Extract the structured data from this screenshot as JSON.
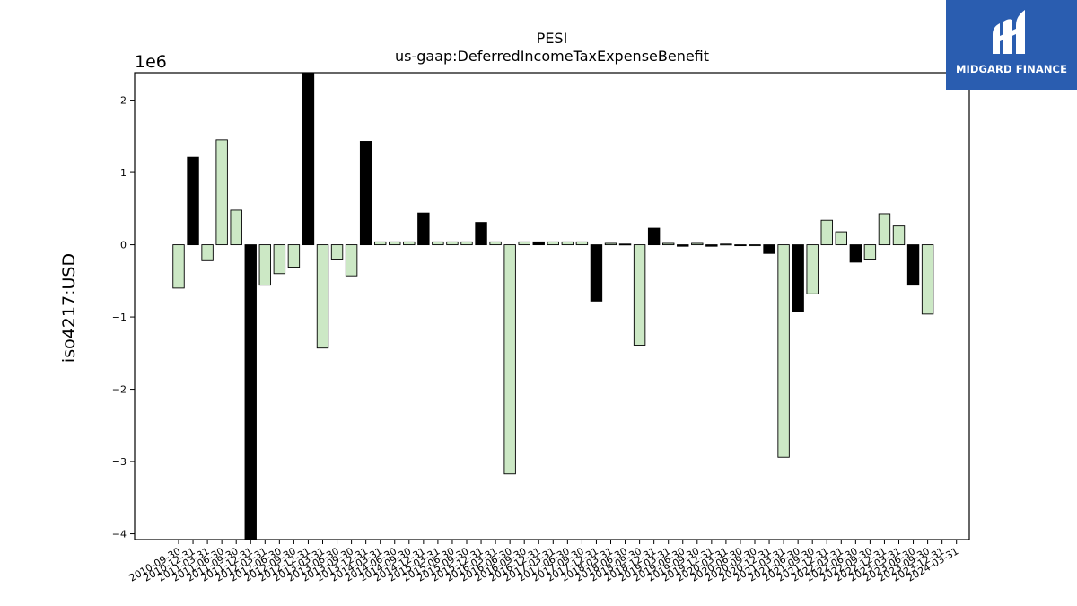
{
  "chart_data": {
    "type": "bar",
    "title": "PESI",
    "subtitle": "us-gaap:DeferredIncomeTaxExpenseBenefit",
    "ylabel": "iso4217:USD",
    "xlabel": "",
    "y_offset_label": "1e6",
    "ylim": [
      -4080000,
      2380000
    ],
    "yticks": [
      2,
      1,
      0,
      -1,
      -2,
      -3,
      -4
    ],
    "ytick_labels": [
      "2",
      "1",
      "0",
      "−1",
      "−2",
      "−3",
      "−4"
    ],
    "colors": {
      "fill_a": "#cce8c5",
      "fill_b": "#000000",
      "edge": "#000000"
    },
    "categories": [
      "2010-09-30",
      "2010-12-31",
      "2011-03-31",
      "2011-06-30",
      "2011-09-30",
      "2011-12-31",
      "2012-03-31",
      "2012-06-30",
      "2012-09-30",
      "2012-12-31",
      "2013-03-31",
      "2013-06-30",
      "2013-09-30",
      "2013-12-31",
      "2014-03-31",
      "2014-06-30",
      "2014-09-30",
      "2014-12-31",
      "2015-03-31",
      "2015-06-30",
      "2015-09-30",
      "2015-12-31",
      "2016-03-31",
      "2016-06-30",
      "2016-09-30",
      "2016-12-31",
      "2017-03-31",
      "2017-06-30",
      "2017-09-30",
      "2017-12-31",
      "2018-03-31",
      "2018-06-30",
      "2018-09-30",
      "2018-12-31",
      "2019-03-31",
      "2019-06-30",
      "2019-09-30",
      "2019-12-31",
      "2020-03-31",
      "2020-06-30",
      "2020-09-30",
      "2020-12-31",
      "2021-03-31",
      "2021-06-30",
      "2021-09-30",
      "2021-12-31",
      "2022-03-31",
      "2022-06-30",
      "2022-09-30",
      "2022-12-31",
      "2023-03-31",
      "2023-06-30",
      "2023-09-30",
      "2023-12-31",
      "2024-03-31"
    ],
    "values": [
      -600000,
      1210000,
      -220000,
      1450000,
      480000,
      -4080000,
      -560000,
      -400000,
      -310000,
      2380000,
      -1430000,
      -210000,
      -430000,
      1430000,
      40000,
      40000,
      40000,
      440000,
      40000,
      40000,
      40000,
      310000,
      40000,
      -3170000,
      40000,
      40000,
      40000,
      40000,
      40000,
      -780000,
      20000,
      10000,
      -1390000,
      230000,
      20000,
      -20000,
      20000,
      -20000,
      10000,
      -10000,
      -10000,
      -120000,
      -2940000,
      -930000,
      -680000,
      340000,
      180000,
      -240000,
      -210000,
      430000,
      260000,
      -560000,
      -960000,
      0,
      0
    ],
    "bar_colors": [
      "a",
      "b",
      "a",
      "a",
      "a",
      "b",
      "a",
      "a",
      "a",
      "b",
      "a",
      "a",
      "a",
      "b",
      "a",
      "a",
      "a",
      "b",
      "a",
      "a",
      "a",
      "b",
      "a",
      "a",
      "a",
      "b",
      "a",
      "a",
      "a",
      "b",
      "a",
      "b",
      "a",
      "b",
      "a",
      "b",
      "a",
      "b",
      "a",
      "b",
      "a",
      "b",
      "a",
      "b",
      "a",
      "a",
      "a",
      "b",
      "a",
      "a",
      "a",
      "b",
      "a",
      "a",
      "a"
    ]
  },
  "logo": {
    "text": "MIDGARD FINANCE",
    "icon": "midgard-logo-icon"
  }
}
